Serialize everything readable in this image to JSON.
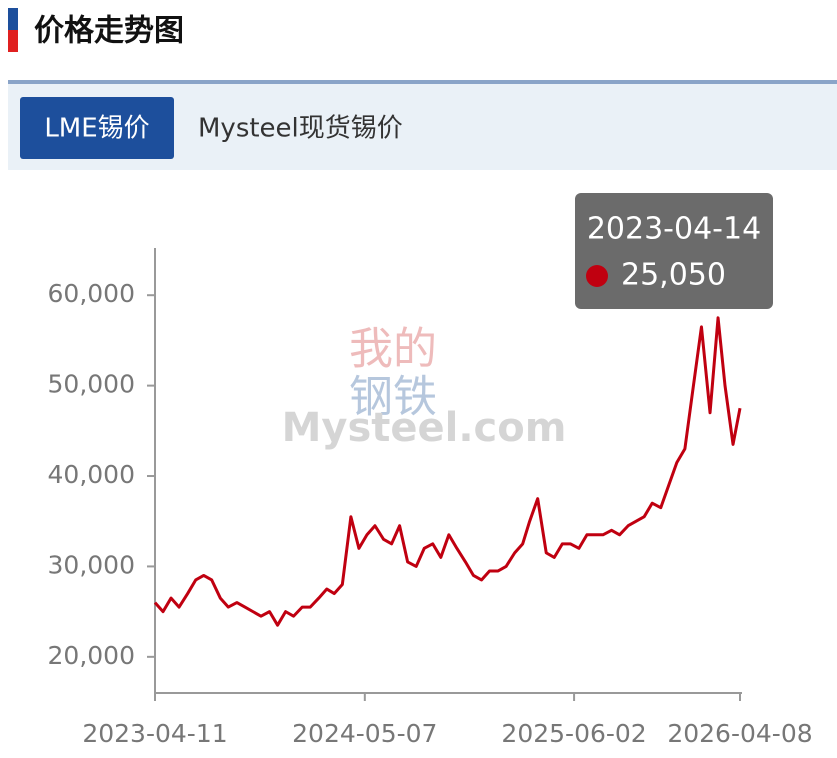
{
  "header": {
    "title": "价格走势图"
  },
  "tabs": [
    "LME锡价",
    "Mysteel现货锡价"
  ],
  "watermark": {
    "top": "我的",
    "middle": "钢铁",
    "brand": "Mysteel.com"
  },
  "tooltip": {
    "date": "2023-04-14",
    "value": "25,050"
  },
  "chart_data": {
    "type": "line",
    "x": [
      "2023-04-11",
      "2023-04-26",
      "2023-05-11",
      "2023-05-26",
      "2023-06-11",
      "2023-06-26",
      "2023-07-11",
      "2023-07-26",
      "2023-08-11",
      "2023-08-26",
      "2023-09-11",
      "2023-09-26",
      "2023-10-11",
      "2023-10-26",
      "2023-11-11",
      "2023-11-26",
      "2023-12-11",
      "2023-12-26",
      "2024-01-11",
      "2024-01-26",
      "2024-02-11",
      "2024-02-26",
      "2024-03-11",
      "2024-03-26",
      "2024-04-11",
      "2024-04-26",
      "2024-05-11",
      "2024-05-26",
      "2024-06-11",
      "2024-06-26",
      "2024-07-11",
      "2024-07-26",
      "2024-08-11",
      "2024-08-26",
      "2024-09-11",
      "2024-09-26",
      "2024-10-11",
      "2024-10-26",
      "2024-11-11",
      "2024-11-26",
      "2024-12-11",
      "2024-12-26",
      "2025-01-11",
      "2025-01-26",
      "2025-02-11",
      "2025-02-26",
      "2025-03-11",
      "2025-03-26",
      "2025-04-11",
      "2025-04-26",
      "2025-05-11",
      "2025-05-26",
      "2025-06-11",
      "2025-06-26",
      "2025-07-11",
      "2025-07-26",
      "2025-08-11",
      "2025-08-26",
      "2025-09-11",
      "2025-09-26",
      "2025-10-11",
      "2025-10-26",
      "2025-11-11",
      "2025-11-26",
      "2025-12-11",
      "2025-12-26",
      "2026-01-11",
      "2026-01-26",
      "2026-02-11",
      "2026-02-26",
      "2026-03-11",
      "2026-03-26",
      "2026-04-08"
    ],
    "series": [
      {
        "name": "LME锡价",
        "color": "#c00010",
        "values": [
          26000,
          25000,
          26500,
          25500,
          27000,
          28500,
          29000,
          28500,
          26500,
          25500,
          26000,
          25500,
          25000,
          24500,
          25000,
          23500,
          25000,
          24500,
          25500,
          25500,
          26500,
          27500,
          27000,
          28000,
          35500,
          32000,
          33500,
          34500,
          33000,
          32500,
          34500,
          30500,
          30000,
          32000,
          32500,
          31000,
          33500,
          32000,
          30500,
          29000,
          28500,
          29500,
          29500,
          30000,
          31500,
          32500,
          35000,
          37500,
          31500,
          31000,
          32500,
          32500,
          32000,
          33500,
          33500,
          33500,
          34000,
          33500,
          34500,
          35000,
          35500,
          37000,
          36500,
          39000,
          41500,
          43000,
          50000,
          56500,
          47000,
          57500,
          50000,
          43500,
          47500
        ]
      }
    ],
    "xlim": [
      "2023-04-11",
      "2026-04-08"
    ],
    "xticks": [
      "2023-04-11",
      "2024-05-07",
      "2025-06-02",
      "2026-04-08"
    ],
    "ylim": [
      16000,
      65000
    ],
    "yticks": [
      {
        "value": 20000,
        "label": "20,000"
      },
      {
        "value": 30000,
        "label": "30,000"
      },
      {
        "value": 40000,
        "label": "40,000"
      },
      {
        "value": 50000,
        "label": "50,000"
      },
      {
        "value": 60000,
        "label": "60,000"
      }
    ]
  }
}
